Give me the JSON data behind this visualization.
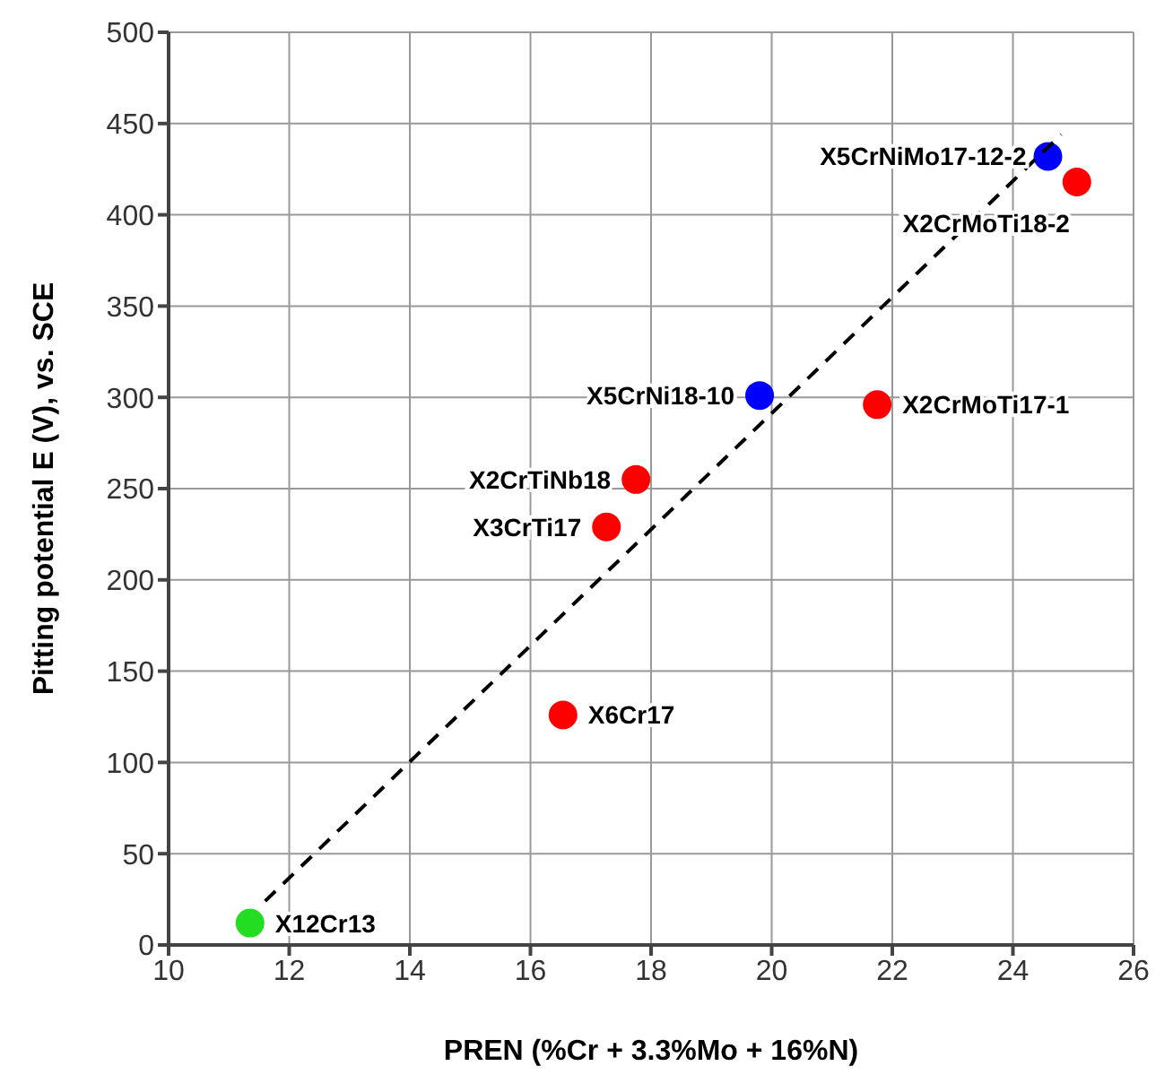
{
  "chart_data": {
    "type": "scatter",
    "xlabel": "PREN (%Cr + 3.3%Mo + 16%N)",
    "ylabel": "Pitting potential E (V), vs. SCE",
    "xlim": [
      10,
      26
    ],
    "xticks": [
      10,
      12,
      14,
      16,
      18,
      20,
      22,
      24,
      26
    ],
    "ylim": [
      0,
      500
    ],
    "yticks": [
      0,
      50,
      100,
      150,
      200,
      250,
      300,
      350,
      400,
      450,
      500
    ],
    "grid": true,
    "marker": "circle",
    "series": [
      {
        "type": "scatter",
        "x": [
          11.35,
          16.54,
          17.26,
          17.75,
          19.8,
          21.75,
          24.58,
          25.06
        ],
        "values": [
          12,
          126,
          229,
          255,
          301,
          296,
          432,
          418
        ],
        "colors": [
          "#22dd22",
          "#ff0000",
          "#ff0000",
          "#ff0000",
          "#0000ff",
          "#ff0000",
          "#0000ff",
          "#ff0000"
        ]
      },
      {
        "type": "line",
        "x": [
          11.6,
          24.8
        ],
        "values": [
          24,
          444
        ],
        "color": "#000000",
        "line_style": "dashed",
        "marker": "none"
      }
    ],
    "annotations": [
      {
        "text": "X12Cr13",
        "x": 11.35,
        "y": 12
      },
      {
        "text": "X6Cr17",
        "x": 16.54,
        "y": 126
      },
      {
        "text": "X3CrTi17",
        "x": 17.26,
        "y": 229
      },
      {
        "text": "X2CrTiNb18",
        "x": 17.75,
        "y": 255
      },
      {
        "text": "X5CrNi18-10",
        "x": 19.8,
        "y": 301
      },
      {
        "text": "X2CrMoTi17-1",
        "x": 21.75,
        "y": 296
      },
      {
        "text": "X5CrNiMo17-12-2",
        "x": 24.58,
        "y": 432
      },
      {
        "text": "X2CrMoTi18-2",
        "x": 25.06,
        "y": 418
      }
    ]
  }
}
